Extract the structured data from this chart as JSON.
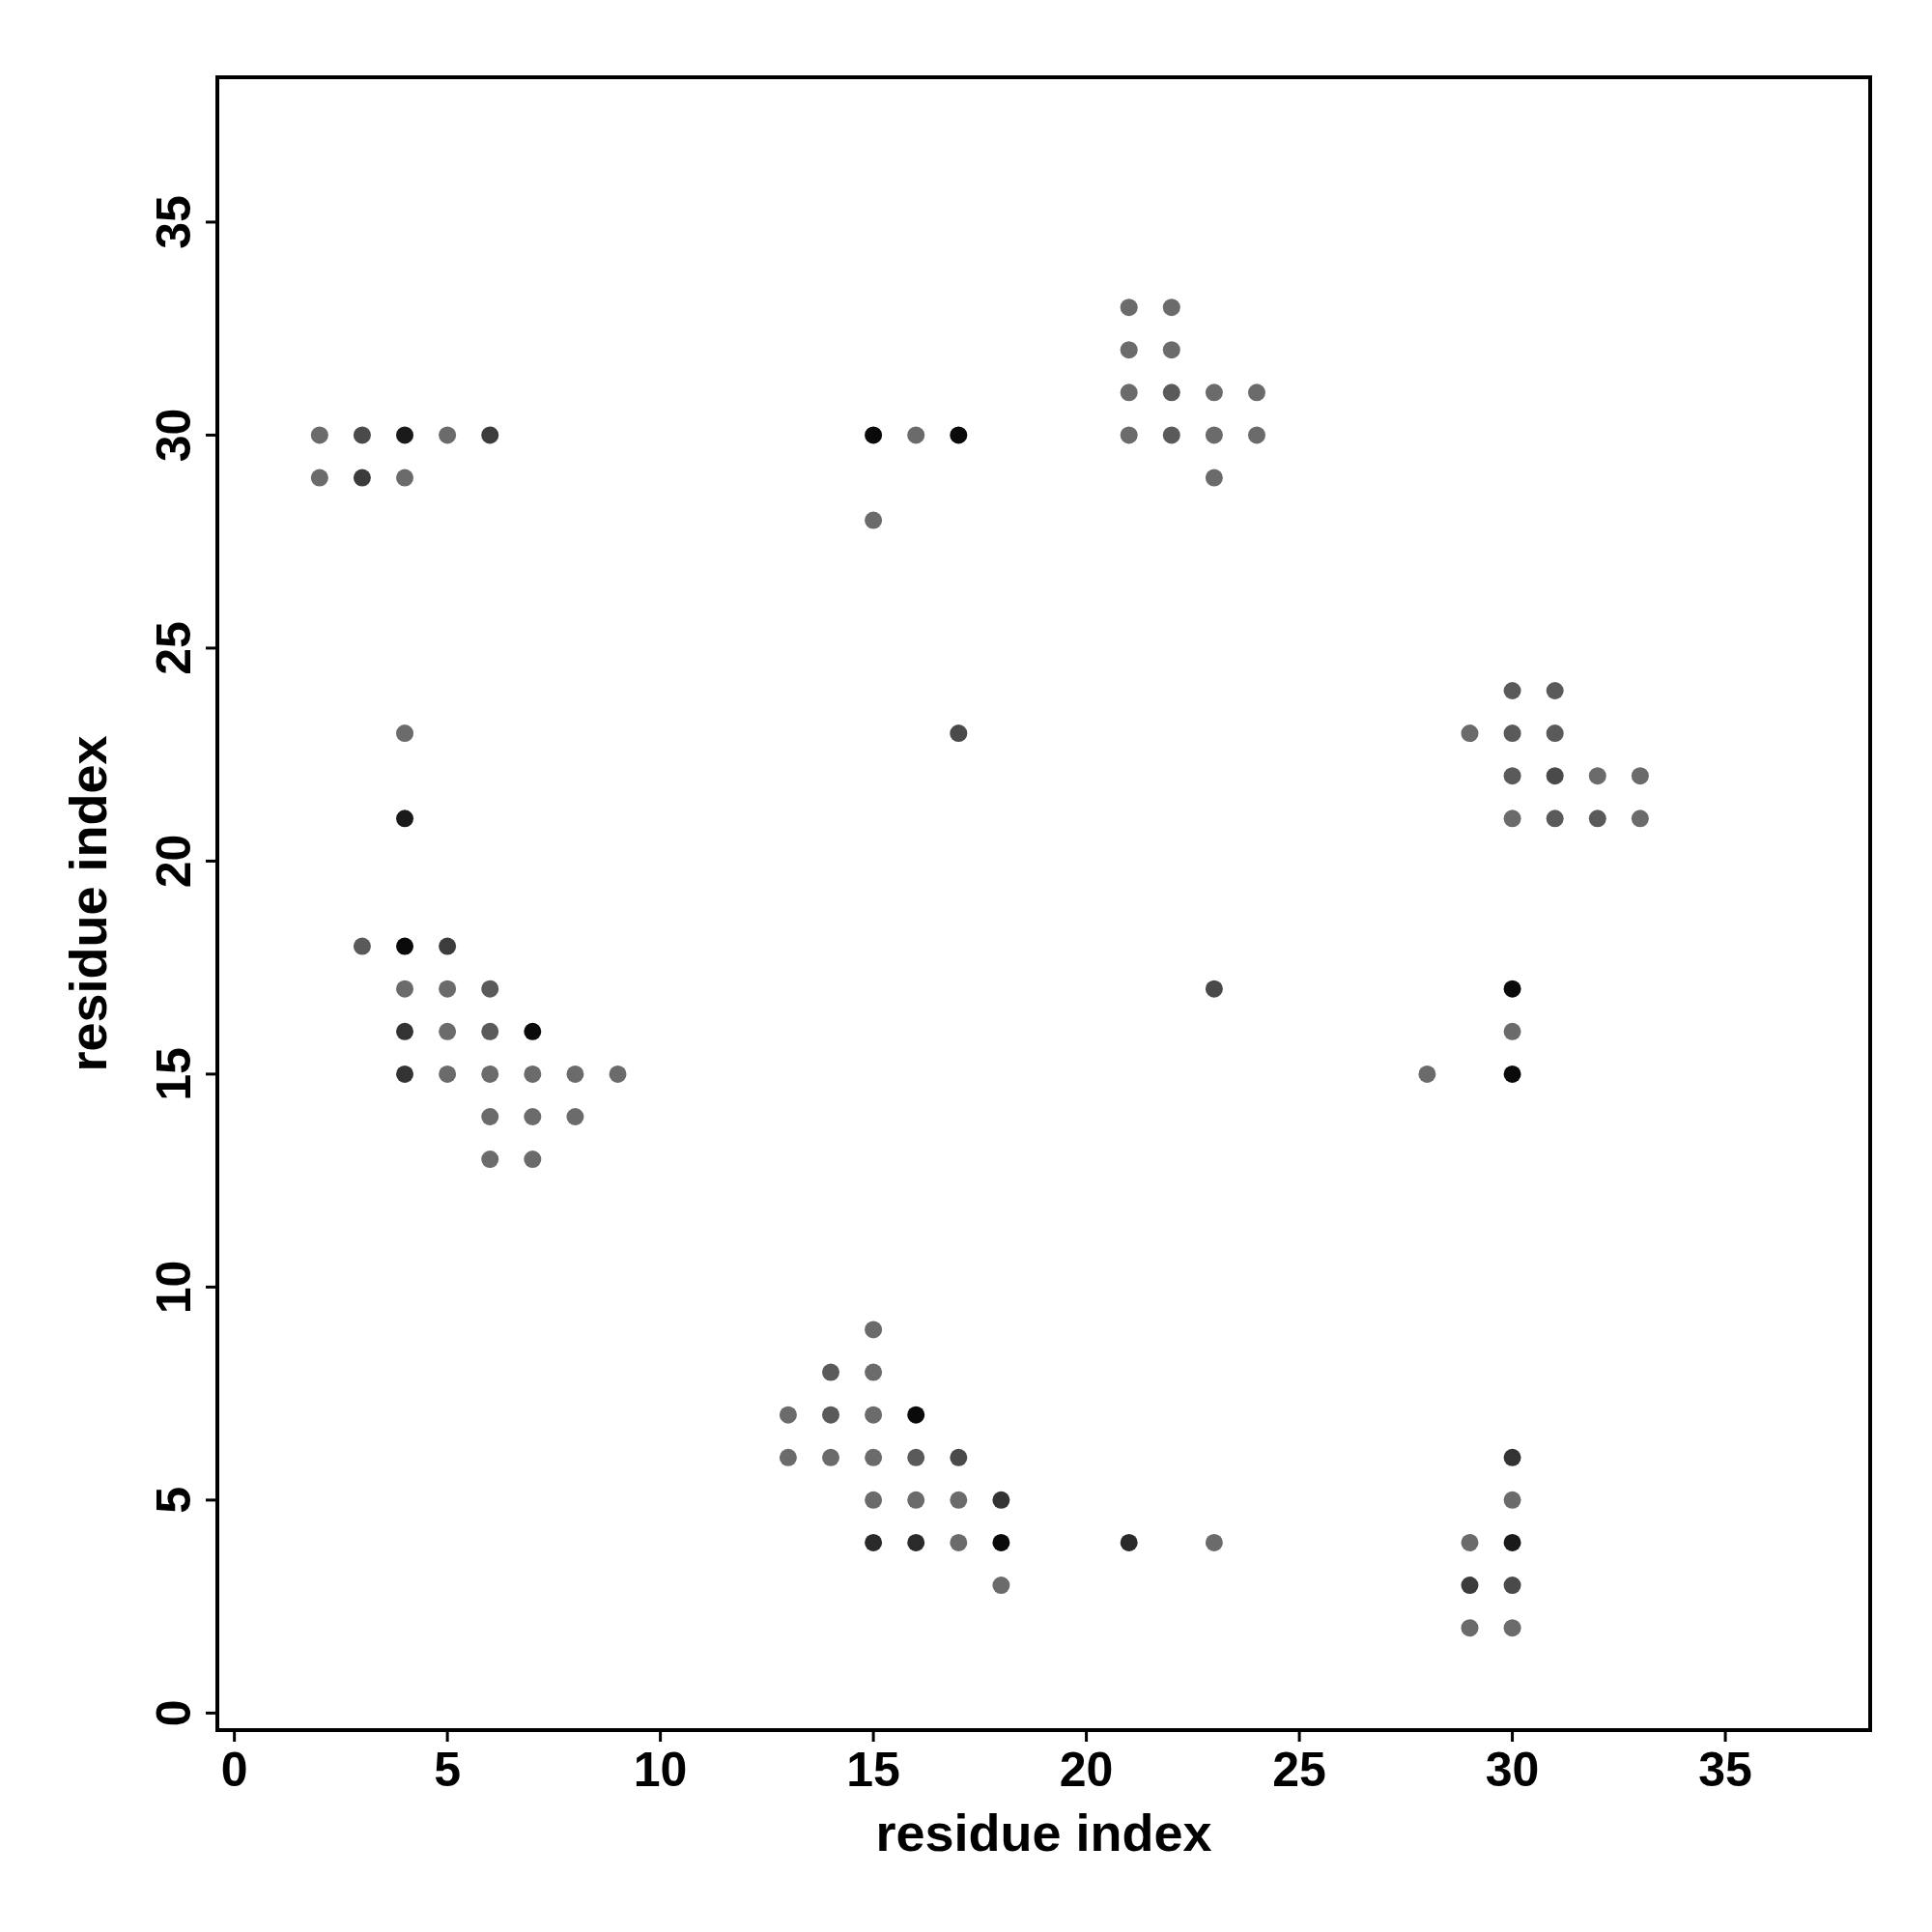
{
  "chart_data": {
    "type": "scatter",
    "xlabel": "residue index",
    "ylabel": "residue index",
    "marker": "circle",
    "grid": false,
    "xlim": [
      -0.4,
      38.4
    ],
    "ylim": [
      -0.4,
      38.4
    ],
    "xticks": [
      0,
      5,
      10,
      15,
      20,
      25,
      30,
      35
    ],
    "yticks": [
      0,
      5,
      10,
      15,
      20,
      25,
      30,
      35
    ],
    "x": [
      2,
      3,
      4,
      5,
      6,
      2,
      3,
      4,
      4,
      4,
      3,
      4,
      5,
      4,
      5,
      6,
      4,
      5,
      6,
      7,
      4,
      5,
      6,
      7,
      8,
      9,
      6,
      7,
      8,
      6,
      7,
      15,
      16,
      17,
      15,
      17,
      21,
      22,
      21,
      22,
      21,
      22,
      23,
      24,
      21,
      22,
      23,
      24,
      23,
      30,
      31,
      29,
      30,
      31,
      30,
      31,
      32,
      33,
      30,
      31,
      32,
      33,
      23,
      30,
      30,
      30,
      28,
      15,
      14,
      15,
      13,
      14,
      15,
      16,
      13,
      14,
      15,
      16,
      17,
      15,
      16,
      17,
      18,
      15,
      16,
      17,
      18,
      18,
      21,
      23,
      30,
      30,
      29,
      30,
      29,
      30,
      29,
      30
    ],
    "values": [
      30,
      30,
      30,
      30,
      30,
      29,
      29,
      29,
      23,
      21,
      18,
      18,
      18,
      17,
      17,
      17,
      16,
      16,
      16,
      16,
      15,
      15,
      15,
      15,
      15,
      15,
      14,
      14,
      14,
      13,
      13,
      30,
      30,
      30,
      28,
      23,
      33,
      33,
      32,
      32,
      31,
      31,
      31,
      31,
      30,
      30,
      30,
      30,
      29,
      24,
      24,
      23,
      23,
      23,
      22,
      22,
      22,
      22,
      21,
      21,
      21,
      21,
      17,
      17,
      16,
      15,
      15,
      9,
      8,
      8,
      7,
      7,
      7,
      7,
      6,
      6,
      6,
      6,
      6,
      5,
      5,
      5,
      5,
      4,
      4,
      4,
      4,
      3,
      4,
      4,
      6,
      5,
      4,
      4,
      3,
      3,
      2,
      2
    ],
    "colors": [
      "#6b6b6b",
      "#4a4a4a",
      "#1a1a1a",
      "#6b6b6b",
      "#3c3c3c",
      "#6b6b6b",
      "#3c3c3c",
      "#6b6b6b",
      "#6b6b6b",
      "#1a1a1a",
      "#5a5a5a",
      "#0a0a0a",
      "#3c3c3c",
      "#6b6b6b",
      "#6b6b6b",
      "#5a5a5a",
      "#333333",
      "#6b6b6b",
      "#5a5a5a",
      "#0a0a0a",
      "#333333",
      "#6b6b6b",
      "#6b6b6b",
      "#6b6b6b",
      "#6b6b6b",
      "#6b6b6b",
      "#6b6b6b",
      "#6b6b6b",
      "#6b6b6b",
      "#6b6b6b",
      "#6b6b6b",
      "#0a0a0a",
      "#6b6b6b",
      "#0a0a0a",
      "#6b6b6b",
      "#4a4a4a",
      "#6b6b6b",
      "#6b6b6b",
      "#6b6b6b",
      "#6b6b6b",
      "#6b6b6b",
      "#5a5a5a",
      "#6b6b6b",
      "#6b6b6b",
      "#6b6b6b",
      "#5a5a5a",
      "#6b6b6b",
      "#6b6b6b",
      "#6b6b6b",
      "#5a5a5a",
      "#5a5a5a",
      "#6b6b6b",
      "#5a5a5a",
      "#5a5a5a",
      "#5a5a5a",
      "#4a4a4a",
      "#6b6b6b",
      "#6b6b6b",
      "#6b6b6b",
      "#5a5a5a",
      "#5a5a5a",
      "#6b6b6b",
      "#4a4a4a",
      "#0a0a0a",
      "#6b6b6b",
      "#0a0a0a",
      "#6b6b6b",
      "#6b6b6b",
      "#5a5a5a",
      "#6b6b6b",
      "#6b6b6b",
      "#5a5a5a",
      "#6b6b6b",
      "#0a0a0a",
      "#6b6b6b",
      "#6b6b6b",
      "#6b6b6b",
      "#5a5a5a",
      "#4a4a4a",
      "#6b6b6b",
      "#6b6b6b",
      "#6b6b6b",
      "#333333",
      "#2a2a2a",
      "#2a2a2a",
      "#6b6b6b",
      "#0a0a0a",
      "#6b6b6b",
      "#2a2a2a",
      "#6b6b6b",
      "#333333",
      "#6b6b6b",
      "#6b6b6b",
      "#1a1a1a",
      "#3c3c3c",
      "#4a4a4a",
      "#6b6b6b",
      "#6b6b6b"
    ]
  }
}
